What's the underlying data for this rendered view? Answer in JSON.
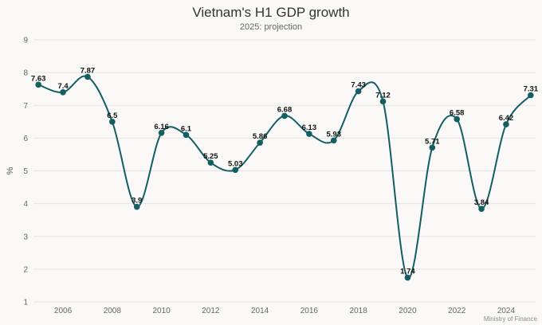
{
  "chart_data": {
    "type": "line",
    "title": "Vietnam's H1 GDP growth",
    "subtitle": "2025: projection",
    "ylabel": "%",
    "xlabel": "",
    "source": "Ministry of Finance",
    "x": [
      2005,
      2006,
      2007,
      2008,
      2009,
      2010,
      2011,
      2012,
      2013,
      2014,
      2015,
      2016,
      2017,
      2018,
      2019,
      2020,
      2021,
      2022,
      2023,
      2024,
      2025
    ],
    "series": [
      {
        "values": [
          7.63,
          7.4,
          7.87,
          6.5,
          3.9,
          6.16,
          6.1,
          5.25,
          5.03,
          5.86,
          6.68,
          6.13,
          5.93,
          7.43,
          7.12,
          1.74,
          5.71,
          6.58,
          3.84,
          6.42,
          7.31
        ],
        "labels": [
          "7.63",
          "7.4",
          "7.87",
          "6.5",
          "3.9",
          "6.16",
          "6.1",
          "5.25",
          "5.03",
          "5.86",
          "6.68",
          "6.13",
          "5.93",
          "7.43",
          "7.12",
          "1.74",
          "5.71",
          "6.58",
          "3.84",
          "6.42",
          "7.31"
        ]
      }
    ],
    "xlim": [
      2004.8,
      2025.2
    ],
    "ylim": [
      1,
      9
    ],
    "yticks": [
      "1",
      "2",
      "3",
      "4",
      "5",
      "6",
      "7",
      "8",
      "9"
    ],
    "xticks": [
      "2006",
      "2008",
      "2010",
      "2012",
      "2014",
      "2016",
      "2018",
      "2020",
      "2022",
      "2024"
    ],
    "grid": true,
    "smooth": true,
    "colors": {
      "line": "#125e63",
      "marker": "#125e63",
      "grid": "#e6e4e1",
      "background": "#fbf9f7"
    }
  }
}
